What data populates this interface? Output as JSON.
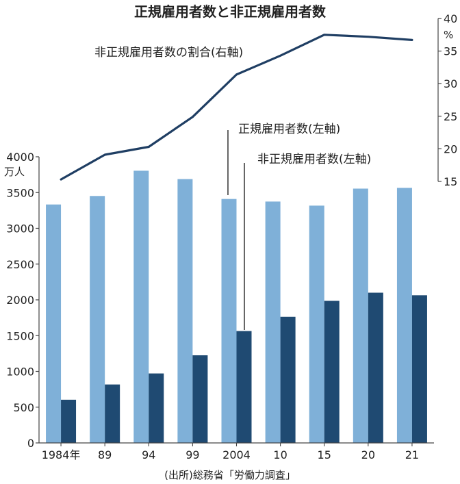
{
  "chart_data": {
    "type": "bar",
    "title": "正規雇用者数と非正規雇用者数",
    "categories": [
      "1984年",
      "89",
      "94",
      "99",
      "2004",
      "10",
      "15",
      "20",
      "21"
    ],
    "left_axis": {
      "unit": "万人",
      "range": [
        0,
        4000
      ],
      "ticks": [
        "0",
        "500",
        "1000",
        "1500",
        "2000",
        "2500",
        "3000",
        "3500",
        "4000"
      ]
    },
    "right_axis": {
      "unit": "%",
      "range": [
        15,
        40
      ],
      "ticks": [
        "15",
        "20",
        "25",
        "30",
        "35",
        "40"
      ]
    },
    "series": [
      {
        "name": "正規雇用者数(左軸)",
        "type": "bar",
        "axis": "left",
        "color": "#7fb0d8",
        "values": [
          3333,
          3452,
          3805,
          3688,
          3410,
          3374,
          3317,
          3555,
          3565
        ]
      },
      {
        "name": "非正規雇用者数(左軸)",
        "type": "bar",
        "axis": "left",
        "color": "#1f4a72",
        "values": [
          604,
          817,
          971,
          1225,
          1564,
          1763,
          1986,
          2100,
          2064
        ]
      },
      {
        "name": "非正規雇用者数の割合(右軸)",
        "type": "line",
        "axis": "right",
        "color": "#1f3e63",
        "values": [
          15.3,
          19.1,
          20.3,
          24.9,
          31.4,
          34.3,
          37.5,
          37.2,
          36.7
        ]
      }
    ],
    "grid": false,
    "source": "(出所)総務省「労働力調査」"
  }
}
